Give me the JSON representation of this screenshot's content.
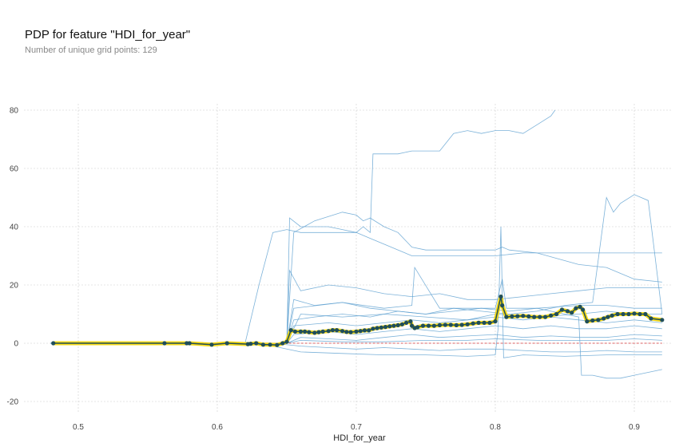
{
  "chart_data": {
    "type": "line",
    "title": "PDP for feature \"HDI_for_year\"",
    "subtitle": "Number of unique grid points: 129",
    "xlabel": "HDI_for_year",
    "ylabel": "",
    "xlim": [
      0.48,
      0.925
    ],
    "ylim": [
      -25,
      82
    ],
    "xticks": [
      0.5,
      0.6,
      0.7,
      0.8,
      0.9
    ],
    "yticks": [
      -20,
      0,
      20,
      40,
      60,
      80
    ],
    "grid": true,
    "colors": {
      "ice": "#5b9fcf",
      "pdp_line": "#1f4e5a",
      "pdp_band": "#f5d600",
      "marker": "#1f4e5a",
      "baseline": "#d62728",
      "grid": "#cccccc"
    },
    "pdp": {
      "x": [
        0.482,
        0.562,
        0.578,
        0.58,
        0.596,
        0.607,
        0.622,
        0.624,
        0.628,
        0.633,
        0.638,
        0.643,
        0.647,
        0.65,
        0.653,
        0.656,
        0.66,
        0.663,
        0.666,
        0.67,
        0.673,
        0.676,
        0.68,
        0.683,
        0.686,
        0.69,
        0.693,
        0.696,
        0.7,
        0.703,
        0.706,
        0.709,
        0.712,
        0.715,
        0.718,
        0.721,
        0.724,
        0.727,
        0.73,
        0.733,
        0.736,
        0.739,
        0.74,
        0.742,
        0.744,
        0.748,
        0.752,
        0.756,
        0.76,
        0.764,
        0.768,
        0.772,
        0.776,
        0.78,
        0.784,
        0.788,
        0.792,
        0.796,
        0.8,
        0.804,
        0.805,
        0.808,
        0.812,
        0.816,
        0.82,
        0.824,
        0.828,
        0.832,
        0.836,
        0.84,
        0.844,
        0.848,
        0.852,
        0.855,
        0.858,
        0.861,
        0.863,
        0.866,
        0.87,
        0.874,
        0.878,
        0.881,
        0.884,
        0.888,
        0.892,
        0.896,
        0.9,
        0.904,
        0.908,
        0.912,
        0.92
      ],
      "y": [
        0,
        0,
        0,
        0,
        -0.5,
        0,
        -0.3,
        -0.2,
        0,
        -0.5,
        -0.5,
        -0.6,
        0,
        0.5,
        4.5,
        4,
        4,
        4,
        3.8,
        3.6,
        3.8,
        4,
        4.2,
        4.5,
        4.5,
        4.2,
        3.9,
        3.8,
        4,
        4.2,
        4.4,
        4.4,
        5,
        5.2,
        5.4,
        5.6,
        5.8,
        6,
        6.2,
        6.5,
        7,
        7.5,
        6,
        5.2,
        5.5,
        6,
        6,
        6,
        6.2,
        6.3,
        6.3,
        6.2,
        6.3,
        6.5,
        6.8,
        7,
        7,
        7,
        7.5,
        16,
        13,
        9,
        9.2,
        9.3,
        9.4,
        9.2,
        9,
        9,
        9,
        9.5,
        10,
        11.5,
        11,
        10.5,
        12,
        12.5,
        11.5,
        7.5,
        7.8,
        8,
        8.5,
        9,
        9.5,
        10,
        10,
        10,
        10.2,
        10,
        10,
        8.5,
        8
      ]
    },
    "ice": [
      {
        "x": [
          0.48,
          0.62,
          0.63,
          0.64,
          0.65,
          0.66,
          0.7,
          0.705,
          0.71,
          0.712,
          0.73,
          0.74,
          0.76,
          0.77,
          0.78,
          0.79,
          0.8,
          0.81,
          0.82,
          0.83,
          0.84,
          0.843
        ],
        "y": [
          0,
          0,
          20,
          38,
          39,
          38,
          38,
          40,
          38,
          65,
          65,
          66,
          66,
          72,
          73,
          72,
          73,
          73,
          72,
          75,
          78,
          80
        ]
      },
      {
        "x": [
          0.48,
          0.65,
          0.652,
          0.66,
          0.68,
          0.69,
          0.7,
          0.71,
          0.72,
          0.74,
          0.76,
          0.78,
          0.8,
          0.82,
          0.83,
          0.84,
          0.85,
          0.86,
          0.92
        ],
        "y": [
          0,
          0,
          43,
          40,
          40,
          39,
          38,
          36,
          34,
          30,
          30,
          30,
          30,
          31,
          31,
          31,
          31,
          31,
          31
        ]
      },
      {
        "x": [
          0.48,
          0.65,
          0.655,
          0.67,
          0.69,
          0.7,
          0.705,
          0.71,
          0.72,
          0.73,
          0.74,
          0.75,
          0.8,
          0.805,
          0.81,
          0.83,
          0.86,
          0.88,
          0.9,
          0.92
        ],
        "y": [
          0,
          0,
          38,
          42,
          45,
          44,
          42,
          43,
          40,
          38,
          33,
          32,
          32,
          33,
          32,
          31,
          27,
          26,
          22,
          21
        ]
      },
      {
        "x": [
          0.48,
          0.65,
          0.652,
          0.66,
          0.68,
          0.7,
          0.72,
          0.74,
          0.76,
          0.78,
          0.8,
          0.82,
          0.84,
          0.86,
          0.88,
          0.9,
          0.92
        ],
        "y": [
          0,
          0,
          25,
          18,
          20,
          19,
          17,
          16,
          17,
          15,
          15,
          16,
          17,
          18,
          19,
          19,
          19
        ]
      },
      {
        "x": [
          0.48,
          0.65,
          0.655,
          0.67,
          0.69,
          0.71,
          0.73,
          0.75,
          0.77,
          0.79,
          0.81,
          0.83,
          0.85,
          0.86,
          0.862,
          0.87,
          0.88,
          0.89,
          0.9,
          0.91,
          0.92
        ],
        "y": [
          0,
          0,
          15,
          13,
          14,
          12,
          11,
          10,
          11,
          12,
          11,
          12,
          10,
          9,
          -11,
          -11,
          -12,
          -12,
          -11,
          -10,
          -9
        ]
      },
      {
        "x": [
          0.48,
          0.65,
          0.655,
          0.67,
          0.69,
          0.71,
          0.73,
          0.75,
          0.77,
          0.79,
          0.81,
          0.83,
          0.85,
          0.87,
          0.88,
          0.885,
          0.89,
          0.9,
          0.91,
          0.92
        ],
        "y": [
          0,
          0,
          8,
          9,
          10,
          9,
          11,
          10,
          12,
          11,
          10,
          11,
          13,
          14,
          50,
          45,
          48,
          51,
          49,
          10
        ]
      },
      {
        "x": [
          0.48,
          0.65,
          0.655,
          0.68,
          0.7,
          0.72,
          0.74,
          0.76,
          0.78,
          0.8,
          0.82,
          0.84,
          0.86,
          0.88,
          0.9,
          0.92
        ],
        "y": [
          0,
          0,
          6,
          7,
          6,
          7,
          8,
          7,
          8,
          9,
          8,
          9,
          8,
          7,
          8,
          7
        ]
      },
      {
        "x": [
          0.48,
          0.65,
          0.655,
          0.68,
          0.7,
          0.72,
          0.74,
          0.76,
          0.78,
          0.8,
          0.82,
          0.84,
          0.86,
          0.88,
          0.9,
          0.92
        ],
        "y": [
          0,
          0,
          3,
          4,
          3,
          4,
          5,
          4,
          5,
          6,
          5,
          6,
          5,
          5,
          6,
          5
        ]
      },
      {
        "x": [
          0.48,
          0.65,
          0.66,
          0.68,
          0.7,
          0.72,
          0.74,
          0.76,
          0.78,
          0.8,
          0.82,
          0.84,
          0.86,
          0.88,
          0.9,
          0.92
        ],
        "y": [
          0,
          0,
          2,
          1.5,
          1,
          2,
          3,
          2,
          2.5,
          3,
          2,
          2.5,
          2,
          2,
          3,
          2.5
        ]
      },
      {
        "x": [
          0.48,
          0.64,
          0.66,
          0.68,
          0.7,
          0.72,
          0.74,
          0.76,
          0.78,
          0.8,
          0.82,
          0.84,
          0.86,
          0.88,
          0.9,
          0.92
        ],
        "y": [
          0,
          0,
          -1,
          -1.5,
          -2,
          -1.5,
          -2,
          -2.5,
          -2,
          -2,
          -2.5,
          -3,
          -3,
          -2.5,
          -3,
          -3
        ]
      },
      {
        "x": [
          0.48,
          0.63,
          0.66,
          0.69,
          0.72,
          0.75,
          0.78,
          0.8,
          0.802,
          0.804,
          0.806,
          0.82,
          0.85,
          0.88,
          0.92
        ],
        "y": [
          0,
          0,
          -3,
          -3.5,
          -4,
          -4,
          -4.5,
          -4,
          5,
          40,
          -5,
          -4,
          -4.5,
          -4,
          -4
        ]
      },
      {
        "x": [
          0.48,
          0.65,
          0.655,
          0.69,
          0.72,
          0.74,
          0.742,
          0.76,
          0.8,
          0.805,
          0.808,
          0.83,
          0.86,
          0.88,
          0.9,
          0.92
        ],
        "y": [
          0,
          0,
          12,
          14,
          12,
          13,
          26,
          12,
          12,
          22,
          12,
          12,
          13,
          13,
          12,
          12
        ]
      },
      {
        "x": [
          0.48,
          0.65,
          0.66,
          0.69,
          0.72,
          0.75,
          0.78,
          0.8,
          0.83,
          0.86,
          0.88,
          0.9,
          0.92
        ],
        "y": [
          0,
          0,
          10,
          9,
          10,
          9,
          8,
          10,
          9,
          10,
          11,
          10,
          10
        ]
      },
      {
        "x": [
          0.48,
          0.65,
          0.66,
          0.69,
          0.72,
          0.75,
          0.78,
          0.8,
          0.83,
          0.86,
          0.88,
          0.9,
          0.92
        ],
        "y": [
          0,
          0,
          1,
          0.5,
          0.5,
          1,
          1,
          1.5,
          1,
          1,
          1,
          1.5,
          1
        ]
      }
    ]
  }
}
